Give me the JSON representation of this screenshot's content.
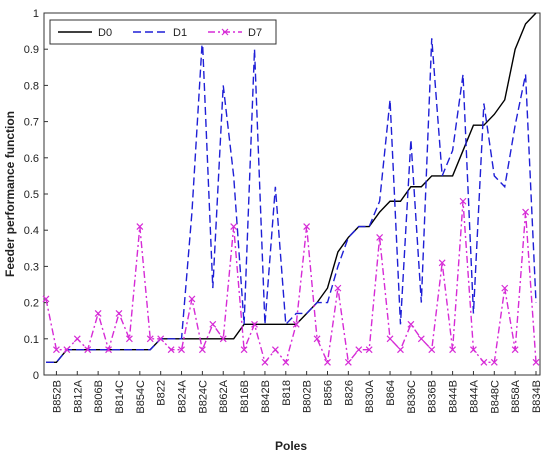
{
  "chart_data": {
    "type": "line",
    "xlabel": "Poles",
    "ylabel": "Feeder performance function",
    "categories": [
      null,
      "B852B",
      null,
      "B812A",
      null,
      "B806B",
      null,
      "B814C",
      null,
      "B854C",
      null,
      "B822",
      null,
      "B824A",
      null,
      "B824C",
      null,
      "B862A",
      null,
      "B816B",
      null,
      "B842B",
      null,
      "B818",
      null,
      "B802B",
      null,
      "B856",
      null,
      "B826",
      null,
      "B830A",
      null,
      "B864",
      null,
      "B836C",
      null,
      "B836B",
      null,
      "B844B",
      null,
      "B844A",
      null,
      "B848C",
      null,
      "B858A",
      null,
      "B834B"
    ],
    "series": [
      {
        "name": "D0",
        "color": "#000000",
        "linestyle": "solid",
        "values": [
          0.035,
          0.035,
          0.07,
          0.07,
          0.07,
          0.07,
          0.07,
          0.07,
          0.07,
          0.07,
          0.07,
          0.1,
          0.1,
          0.1,
          0.1,
          0.1,
          0.1,
          0.1,
          0.1,
          0.14,
          0.14,
          0.14,
          0.14,
          0.14,
          0.14,
          0.17,
          0.2,
          0.24,
          0.34,
          0.38,
          0.41,
          0.41,
          0.45,
          0.48,
          0.48,
          0.52,
          0.52,
          0.55,
          0.55,
          0.55,
          0.62,
          0.69,
          0.69,
          0.72,
          0.76,
          0.9,
          0.97,
          1.0
        ]
      },
      {
        "name": "D1",
        "color": "#1f1fd6",
        "linestyle": "dashed",
        "values": [
          0.035,
          0.035,
          0.07,
          0.07,
          0.07,
          0.07,
          0.07,
          0.07,
          0.07,
          0.07,
          0.07,
          0.1,
          0.1,
          0.1,
          0.45,
          0.93,
          0.24,
          0.8,
          0.55,
          0.14,
          0.9,
          0.14,
          0.52,
          0.14,
          0.17,
          0.17,
          0.2,
          0.2,
          0.3,
          0.38,
          0.41,
          0.41,
          0.48,
          0.76,
          0.14,
          0.65,
          0.2,
          0.93,
          0.55,
          0.62,
          0.83,
          0.17,
          0.75,
          0.55,
          0.52,
          0.69,
          0.83,
          0.2
        ]
      },
      {
        "name": "D7",
        "color": "#d62bd6",
        "linestyle": "dashdot",
        "marker": "x",
        "values": [
          0.21,
          0.07,
          0.07,
          0.1,
          0.07,
          0.17,
          0.07,
          0.17,
          0.1,
          0.41,
          0.1,
          0.1,
          0.07,
          0.07,
          0.21,
          0.07,
          0.14,
          0.1,
          0.41,
          0.07,
          0.14,
          0.035,
          0.07,
          0.035,
          0.14,
          0.41,
          0.1,
          0.035,
          0.24,
          0.035,
          0.07,
          0.07,
          0.38,
          0.1,
          0.07,
          0.14,
          0.1,
          0.07,
          0.31,
          0.07,
          0.48,
          0.07,
          0.035,
          0.035,
          0.24,
          0.07,
          0.45,
          0.035
        ]
      }
    ],
    "ylim": [
      0,
      1
    ],
    "yticks": [
      0,
      0.1,
      0.2,
      0.3,
      0.4,
      0.5,
      0.6,
      0.7,
      0.8,
      0.9,
      1
    ],
    "legend": "upper left"
  }
}
